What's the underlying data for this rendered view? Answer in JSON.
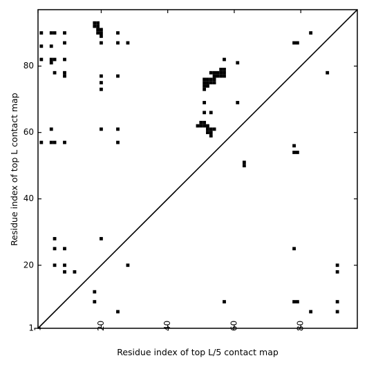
{
  "chart_data": {
    "type": "heatmap",
    "title": "",
    "xlabel": "Residue index of top L/5 contact map",
    "ylabel": "Residue index of top L contact map",
    "xlim": [
      1,
      97
    ],
    "ylim": [
      1,
      97
    ],
    "xticks": [
      {
        "value": 1,
        "label": "1"
      },
      {
        "value": 20,
        "label": "20"
      },
      {
        "value": 40,
        "label": "40"
      },
      {
        "value": 60,
        "label": "60"
      },
      {
        "value": 80,
        "label": "80"
      }
    ],
    "yticks": [
      {
        "value": 1,
        "label": "1"
      },
      {
        "value": 20,
        "label": "20"
      },
      {
        "value": 40,
        "label": "40"
      },
      {
        "value": 60,
        "label": "60"
      },
      {
        "value": 80,
        "label": "80"
      }
    ],
    "x_tick_rotation_deg": 270,
    "diagonal": true,
    "grid": false,
    "cell_color": "#000000",
    "upper_left_contacts_top_L": [
      [
        2,
        90
      ],
      [
        2,
        86
      ],
      [
        2,
        82
      ],
      [
        2,
        57
      ],
      [
        5,
        90
      ],
      [
        5,
        86
      ],
      [
        5,
        82
      ],
      [
        5,
        81
      ],
      [
        5,
        61
      ],
      [
        5,
        57
      ],
      [
        6,
        90
      ],
      [
        6,
        82
      ],
      [
        6,
        78
      ],
      [
        6,
        57
      ],
      [
        9,
        90
      ],
      [
        9,
        87
      ],
      [
        9,
        82
      ],
      [
        9,
        78
      ],
      [
        9,
        77
      ],
      [
        9,
        57
      ],
      [
        18,
        93
      ],
      [
        18,
        92
      ],
      [
        19,
        93
      ],
      [
        19,
        92
      ],
      [
        19,
        91
      ],
      [
        19,
        90
      ],
      [
        20,
        91
      ],
      [
        20,
        90
      ],
      [
        20,
        89
      ],
      [
        20,
        87
      ],
      [
        20,
        77
      ],
      [
        20,
        75
      ],
      [
        20,
        73
      ],
      [
        20,
        61
      ],
      [
        25,
        90
      ],
      [
        25,
        87
      ],
      [
        25,
        77
      ],
      [
        25,
        61
      ],
      [
        25,
        57
      ],
      [
        28,
        87
      ],
      [
        49,
        62
      ],
      [
        50,
        63
      ],
      [
        50,
        62
      ],
      [
        51,
        63
      ],
      [
        51,
        62
      ],
      [
        51,
        76
      ],
      [
        51,
        75
      ],
      [
        51,
        74
      ],
      [
        51,
        73
      ],
      [
        51,
        69
      ],
      [
        51,
        66
      ],
      [
        52,
        76
      ],
      [
        52,
        75
      ],
      [
        52,
        74
      ],
      [
        52,
        61
      ],
      [
        52,
        60
      ],
      [
        52,
        62
      ],
      [
        53,
        78
      ],
      [
        53,
        76
      ],
      [
        53,
        75
      ],
      [
        53,
        66
      ],
      [
        53,
        61
      ],
      [
        53,
        60
      ],
      [
        53,
        59
      ],
      [
        54,
        78
      ],
      [
        54,
        77
      ],
      [
        54,
        76
      ],
      [
        54,
        75
      ],
      [
        54,
        61
      ],
      [
        55,
        78
      ],
      [
        55,
        77
      ],
      [
        56,
        79
      ],
      [
        56,
        78
      ],
      [
        56,
        77
      ],
      [
        57,
        82
      ],
      [
        57,
        79
      ],
      [
        57,
        78
      ],
      [
        57,
        77
      ],
      [
        61,
        81
      ],
      [
        61,
        69
      ],
      [
        63,
        51
      ],
      [
        63,
        50
      ],
      [
        78,
        87
      ],
      [
        78,
        56
      ],
      [
        78,
        54
      ],
      [
        79,
        87
      ],
      [
        79,
        54
      ],
      [
        83,
        90
      ],
      [
        88,
        78
      ]
    ],
    "lower_right_contacts_top_L5": [
      [
        6,
        28
      ],
      [
        6,
        25
      ],
      [
        6,
        20
      ],
      [
        9,
        25
      ],
      [
        9,
        20
      ],
      [
        9,
        18
      ],
      [
        12,
        18
      ],
      [
        18,
        12
      ],
      [
        18,
        9
      ],
      [
        20,
        28
      ],
      [
        25,
        6
      ],
      [
        28,
        20
      ],
      [
        57,
        9
      ],
      [
        78,
        25
      ],
      [
        78,
        9
      ],
      [
        79,
        9
      ],
      [
        83,
        6
      ],
      [
        91,
        20
      ],
      [
        91,
        18
      ],
      [
        91,
        9
      ],
      [
        91,
        6
      ]
    ]
  }
}
